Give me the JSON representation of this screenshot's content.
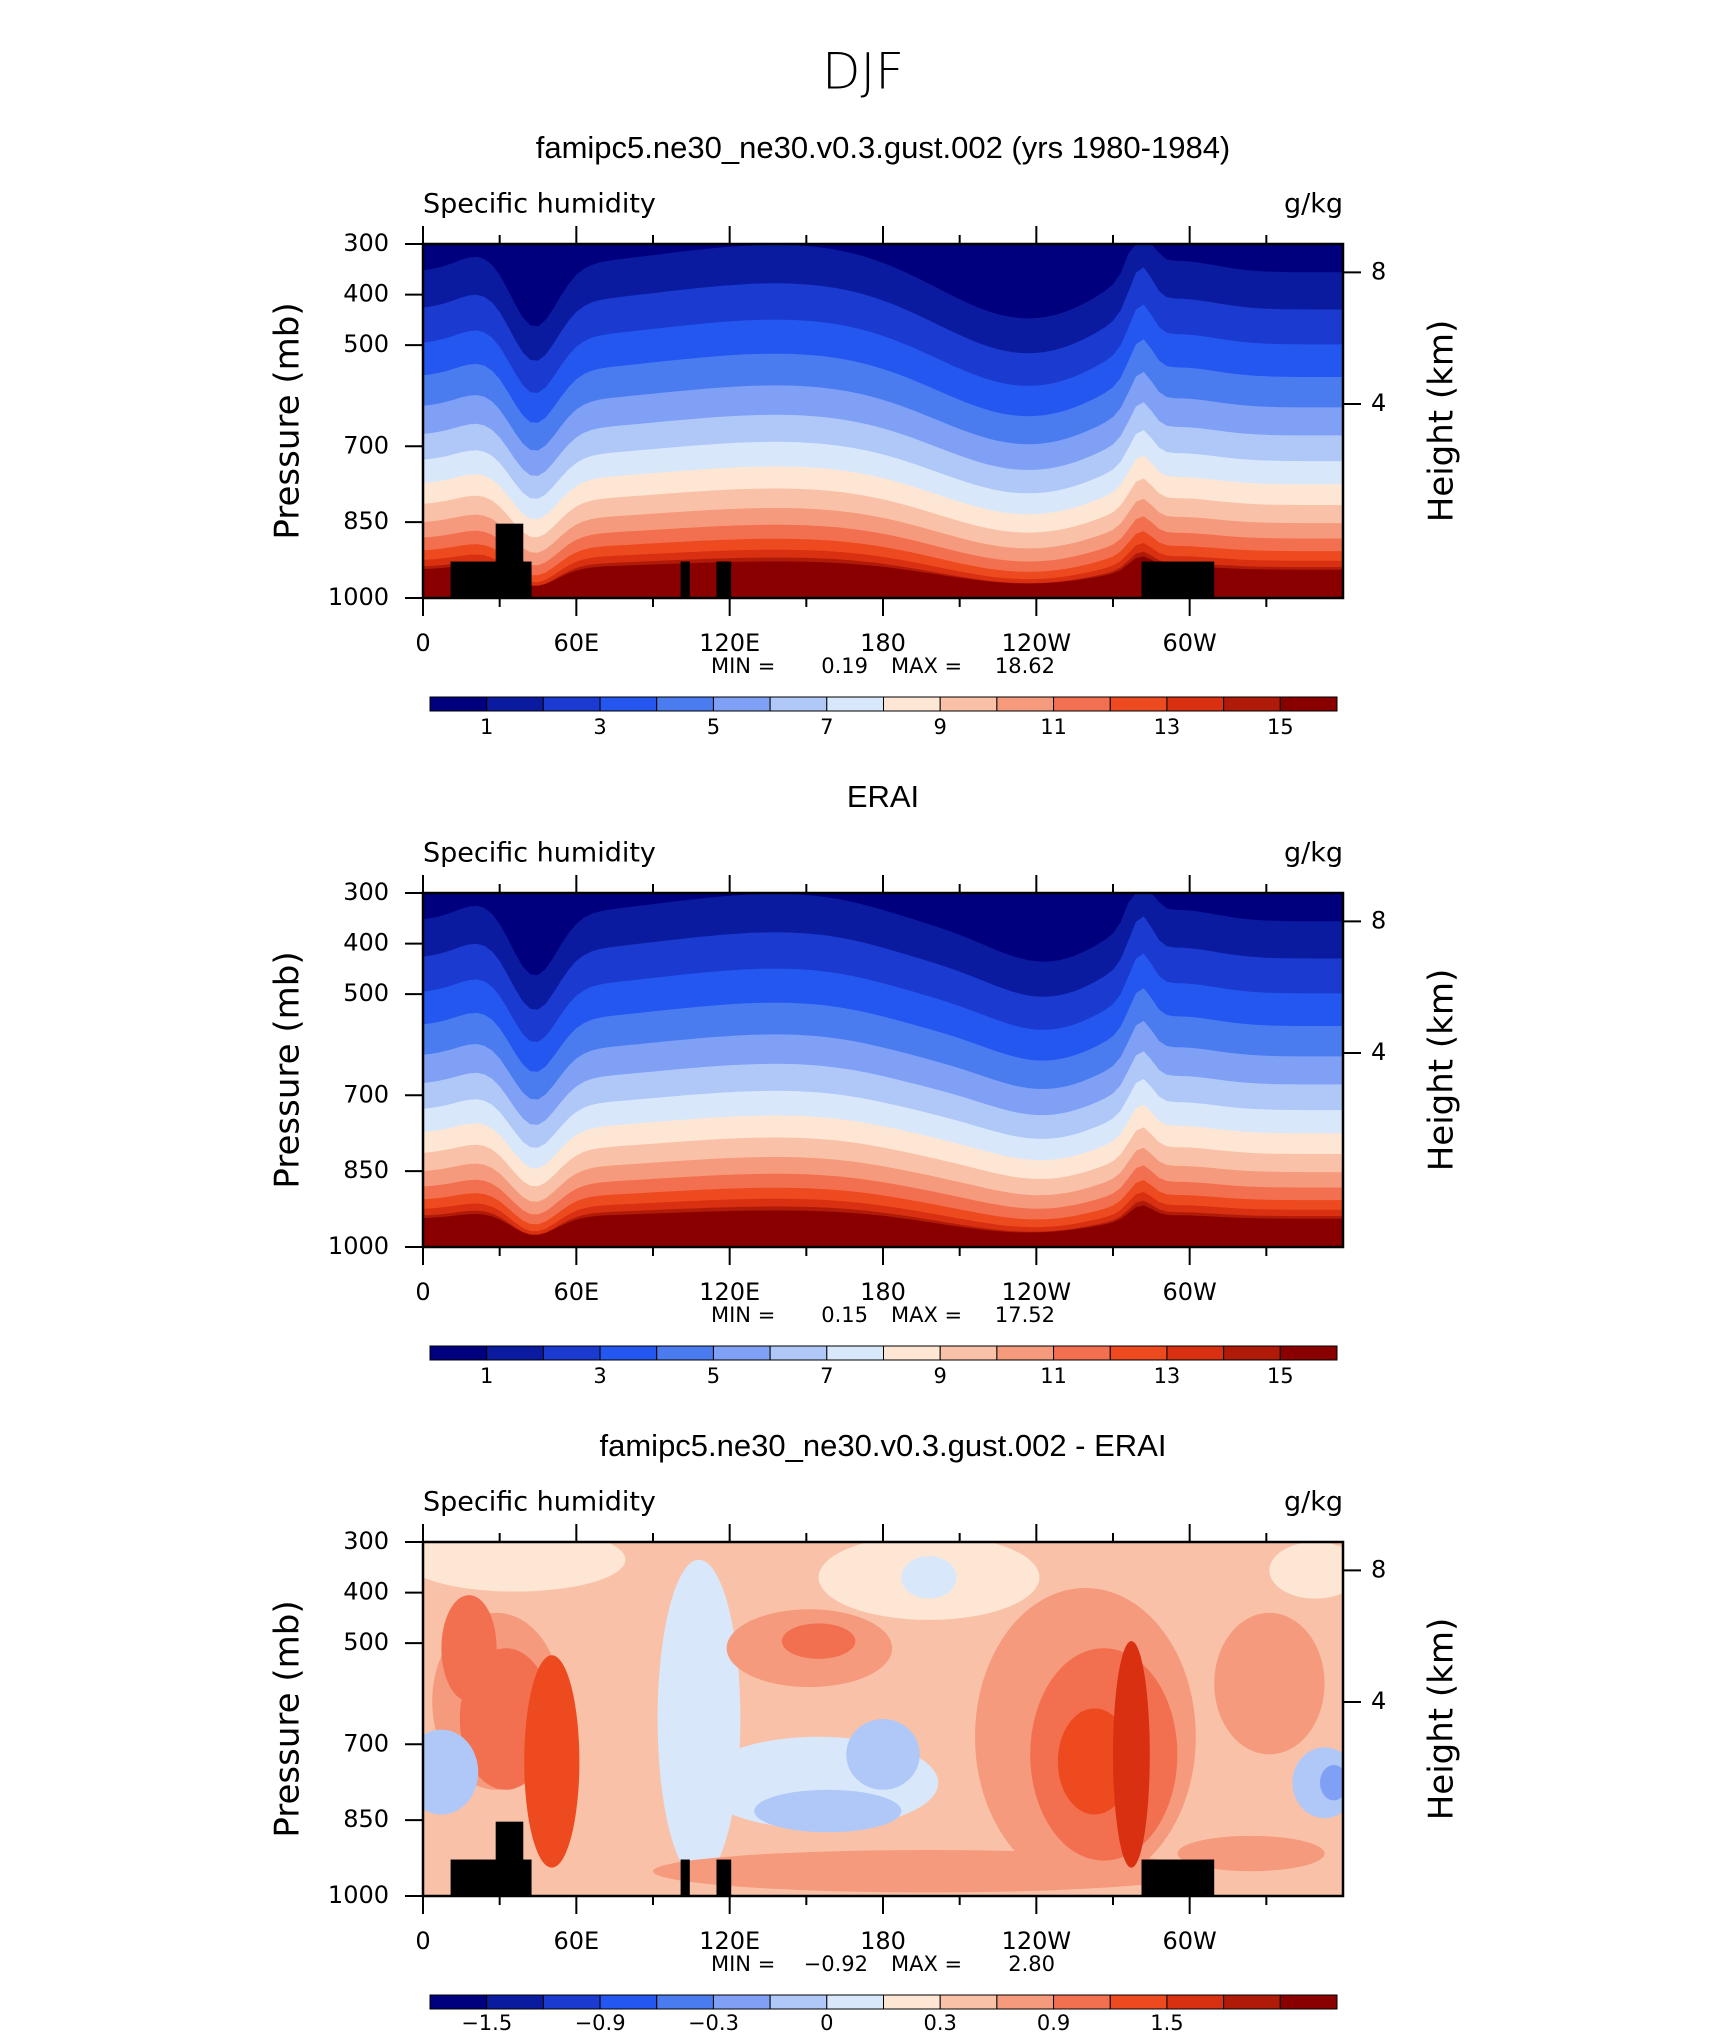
{
  "figure_title": "DJF",
  "chart_data": [
    {
      "type": "contour",
      "field": "climatology",
      "title": "famipc5.ne30_ne30.v0.3.gust.002 (yrs 1980-1984)",
      "variable": "Specific humidity",
      "units": "g/kg",
      "ylabel": "Pressure (mb)",
      "y2label": "Height (km)",
      "xlim": [
        0,
        360
      ],
      "xticks": [
        0,
        {
          "value": 60,
          "label": "60E"
        },
        {
          "value": 120,
          "label": "120E"
        },
        180,
        {
          "value": 240,
          "label": "120W"
        },
        {
          "value": 300,
          "label": "60W"
        }
      ],
      "ylim": [
        1000,
        300
      ],
      "yticks": [
        300,
        400,
        500,
        700,
        850,
        1000
      ],
      "y2ticks": [
        4,
        8
      ],
      "min_label": "MIN =",
      "min": 0.19,
      "max_label": "MAX =",
      "max": 18.62,
      "terrain": true,
      "colorbar": {
        "colors": [
          "#00007f",
          "#0a1ba0",
          "#1a3ad0",
          "#2457f0",
          "#4a7cf0",
          "#7fa0f5",
          "#b0c8f8",
          "#d8e8fa",
          "#fde6d4",
          "#f9c2a8",
          "#f59a7c",
          "#f27050",
          "#ee4a20",
          "#d83010",
          "#b01a08",
          "#8a0000"
        ],
        "ticks": [
          1,
          3,
          5,
          7,
          9,
          11,
          13,
          15
        ]
      }
    },
    {
      "type": "contour",
      "field": "climatology",
      "title": "ERAI",
      "variable": "Specific humidity",
      "units": "g/kg",
      "ylabel": "Pressure (mb)",
      "y2label": "Height (km)",
      "xlim": [
        0,
        360
      ],
      "xticks": [
        0,
        {
          "value": 60,
          "label": "60E"
        },
        {
          "value": 120,
          "label": "120E"
        },
        180,
        {
          "value": 240,
          "label": "120W"
        },
        {
          "value": 300,
          "label": "60W"
        }
      ],
      "ylim": [
        1000,
        300
      ],
      "yticks": [
        300,
        400,
        500,
        700,
        850,
        1000
      ],
      "y2ticks": [
        4,
        8
      ],
      "min_label": "MIN =",
      "min": 0.15,
      "max_label": "MAX =",
      "max": 17.52,
      "terrain": false,
      "colorbar": {
        "colors": [
          "#00007f",
          "#0a1ba0",
          "#1a3ad0",
          "#2457f0",
          "#4a7cf0",
          "#7fa0f5",
          "#b0c8f8",
          "#d8e8fa",
          "#fde6d4",
          "#f9c2a8",
          "#f59a7c",
          "#f27050",
          "#ee4a20",
          "#d83010",
          "#b01a08",
          "#8a0000"
        ],
        "ticks": [
          1,
          3,
          5,
          7,
          9,
          11,
          13,
          15
        ]
      }
    },
    {
      "type": "contour",
      "field": "difference",
      "title": "famipc5.ne30_ne30.v0.3.gust.002 - ERAI",
      "variable": "Specific humidity",
      "units": "g/kg",
      "ylabel": "Pressure (mb)",
      "y2label": "Height (km)",
      "xlim": [
        0,
        360
      ],
      "xticks": [
        0,
        {
          "value": 60,
          "label": "60E"
        },
        {
          "value": 120,
          "label": "120E"
        },
        180,
        {
          "value": 240,
          "label": "120W"
        },
        {
          "value": 300,
          "label": "60W"
        }
      ],
      "ylim": [
        1000,
        300
      ],
      "yticks": [
        300,
        400,
        500,
        700,
        850,
        1000
      ],
      "y2ticks": [
        4,
        8
      ],
      "min_label": "MIN =",
      "min": {
        "value": -0.92,
        "label": "−0.92"
      },
      "max_label": "MAX =",
      "max": {
        "value": 2.8,
        "label": "2.80"
      },
      "terrain": true,
      "colorbar": {
        "colors": [
          "#00007f",
          "#0a1ba0",
          "#1a3ad0",
          "#2457f0",
          "#4a7cf0",
          "#7fa0f5",
          "#b0c8f8",
          "#d8e8fa",
          "#fde6d4",
          "#f9c2a8",
          "#f59a7c",
          "#f27050",
          "#ee4a20",
          "#d83010",
          "#b01a08",
          "#8a0000"
        ],
        "ticks": [
          {
            "value": -1.5,
            "label": "−1.5"
          },
          {
            "value": -0.9,
            "label": "−0.9"
          },
          {
            "value": -0.3,
            "label": "−0.3"
          },
          0,
          {
            "value": 0.3,
            "label": "0.3"
          },
          {
            "value": 0.9,
            "label": "0.9"
          },
          {
            "value": 1.5,
            "label": "1.5"
          }
        ]
      }
    }
  ]
}
